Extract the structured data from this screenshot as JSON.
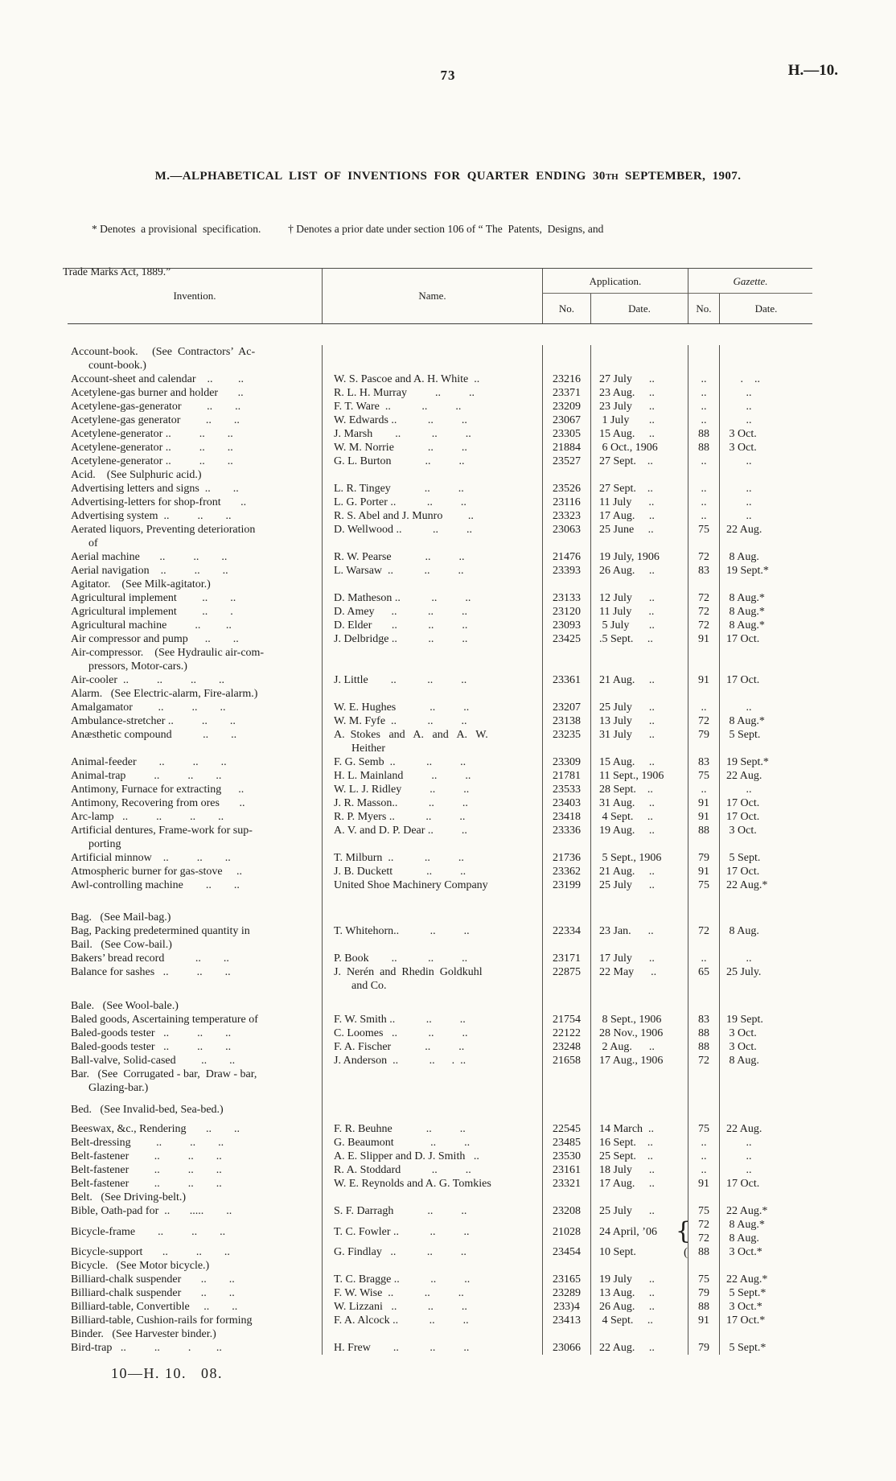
{
  "page": {
    "number": "73",
    "doc_ref": "H.—10.",
    "footer": "10—H. 10.   08."
  },
  "title": {
    "prefix": "M.—ALPHABETICAL  LIST  OF  INVENTIONS  FOR  QUARTER  ENDING  30",
    "ordinal": "TH",
    "suffix": "  SEPTEMBER,  1907."
  },
  "notes": {
    "line1": "* Denotes  a provisional  specification.          † Denotes a prior date under section 106 of “ The  Patents,  Designs, and",
    "line2": "Trade Marks Act, 1889.”"
  },
  "table": {
    "headers": {
      "invention": "Invention.",
      "name": "Name.",
      "application": "Application.",
      "gazette": "Gazette.",
      "no": "No.",
      "date": "Date."
    },
    "rows": [
      {
        "t": "x",
        "inv": [
          "Account-book.     (See  Contractors’  Ac-",
          "count-book.)"
        ]
      },
      {
        "t": "e",
        "inv": [
          "Account-sheet and calendar    ..         .."
        ],
        "name": [
          "W. S. Pascoe and A. H. White  .."
        ],
        "ano": "23216",
        "adate": "27 July      ..",
        "gno": "..",
        "gdate": "     .    .."
      },
      {
        "t": "e",
        "inv": [
          "Acetylene-gas burner and holder       .."
        ],
        "name": [
          "R. L. H. Murray          ..          .."
        ],
        "ano": "23371",
        "adate": "23 Aug.     ..",
        "gno": "..",
        "gdate": "       .."
      },
      {
        "t": "e",
        "inv": [
          "Acetylene-gas-generator         ..        .."
        ],
        "name": [
          "F. T. Ware  ..           ..          .."
        ],
        "ano": "23209",
        "adate": "23 July      ..",
        "gno": "..",
        "gdate": "       .."
      },
      {
        "t": "e",
        "inv": [
          "Acetylene-gas generator         ..        .."
        ],
        "name": [
          "W. Edwards ..           ..          .."
        ],
        "ano": "23067",
        "adate": " 1 July       ..",
        "gno": "..",
        "gdate": "       .."
      },
      {
        "t": "e",
        "inv": [
          "Acetylene-generator ..          ..        .."
        ],
        "name": [
          "J. Marsh        ..           ..          .."
        ],
        "ano": "23305",
        "adate": "15 Aug.     ..",
        "gno": "88",
        "gdate": " 3 Oct."
      },
      {
        "t": "e",
        "inv": [
          "Acetylene-generator ..          ..        .."
        ],
        "name": [
          "W. M. Norrie            ..          .."
        ],
        "ano": "21884",
        "adate": " 6 Oct., 1906",
        "gno": "88",
        "gdate": " 3 Oct."
      },
      {
        "t": "e",
        "inv": [
          "Acetylene-generator ..          ..        .."
        ],
        "name": [
          "G. L. Burton            ..          .."
        ],
        "ano": "23527",
        "adate": "27 Sept.    ..",
        "gno": "..",
        "gdate": "       .."
      },
      {
        "t": "x",
        "inv": [
          "Acid.    (See Sulphuric acid.)"
        ]
      },
      {
        "t": "e",
        "inv": [
          "Advertising letters and signs  ..        .."
        ],
        "name": [
          "L. R. Tingey            ..          .."
        ],
        "ano": "23526",
        "adate": "27 Sept.    ..",
        "gno": "..",
        "gdate": "       .."
      },
      {
        "t": "e",
        "inv": [
          "Advertising-letters for shop-front       .."
        ],
        "name": [
          "L. G. Porter ..           ..          .."
        ],
        "ano": "23116",
        "adate": "11 July      ..",
        "gno": "..",
        "gdate": "       .."
      },
      {
        "t": "e",
        "inv": [
          "Advertising system  ..          ..        .."
        ],
        "name": [
          "R. S. Abel and J. Munro         .."
        ],
        "ano": "23323",
        "adate": "17 Aug.     ..",
        "gno": "..",
        "gdate": "       .."
      },
      {
        "t": "e",
        "inv": [
          "Aerated liquors, Preventing deterioration",
          "of"
        ],
        "name": [
          "D. Wellwood ..           ..          .."
        ],
        "ano": "23063",
        "adate": "25 June     ..",
        "gno": "75",
        "gdate": "22 Aug."
      },
      {
        "t": "e",
        "inv": [
          "Aerial machine       ..          ..        .."
        ],
        "name": [
          "R. W. Pearse            ..          .."
        ],
        "ano": "21476",
        "adate": "19 July, 1906",
        "gno": "72",
        "gdate": " 8 Aug."
      },
      {
        "t": "e",
        "inv": [
          "Aerial navigation    ..          ..        .."
        ],
        "name": [
          "L. Warsaw  ..           ..          .."
        ],
        "ano": "23393",
        "adate": "26 Aug.     ..",
        "gno": "83",
        "gdate": "19 Sept.*"
      },
      {
        "t": "x",
        "inv": [
          "Agitator.    (See Milk-agitator.)"
        ]
      },
      {
        "t": "e",
        "inv": [
          "Agricultural implement         ..        .."
        ],
        "name": [
          "D. Matheson ..           ..          .."
        ],
        "ano": "23133",
        "adate": "12 July      ..",
        "gno": "72",
        "gdate": " 8 Aug.*"
      },
      {
        "t": "e",
        "inv": [
          "Agricultural implement         ..        . "
        ],
        "name": [
          "D. Amey      ..           ..          .."
        ],
        "ano": "23120",
        "adate": "11 July      ..",
        "gno": "72",
        "gdate": " 8 Aug.*"
      },
      {
        "t": "e",
        "inv": [
          "Agricultural machine          ..         .."
        ],
        "name": [
          "D. Elder       ..           ..          .."
        ],
        "ano": "23093",
        "adate": " 5 July       ..",
        "gno": "72",
        "gdate": " 8 Aug.*"
      },
      {
        "t": "e",
        "inv": [
          "Air compressor and pump      ..        .."
        ],
        "name": [
          "J. Delbridge ..           ..          .."
        ],
        "ano": "23425",
        "adate": ".5 Sept.     ..",
        "gno": "91",
        "gdate": "17 Oct."
      },
      {
        "t": "x",
        "inv": [
          "Air-compressor.    (See Hydraulic air-com-",
          "pressors, Motor-cars.)"
        ]
      },
      {
        "t": "e",
        "inv": [
          "Air-cooler  ..          ..          ..        .."
        ],
        "name": [
          "J. Little        ..           ..          .."
        ],
        "ano": "23361",
        "adate": "21 Aug.     ..",
        "gno": "91",
        "gdate": "17 Oct."
      },
      {
        "t": "x",
        "inv": [
          "Alarm.   (See Electric-alarm, Fire-alarm.)"
        ]
      },
      {
        "t": "e",
        "inv": [
          "Amalgamator         ..          ..        .."
        ],
        "name": [
          "W. E. Hughes            ..          .."
        ],
        "ano": "23207",
        "adate": "25 July      ..",
        "gno": "..",
        "gdate": "       .."
      },
      {
        "t": "e",
        "inv": [
          "Ambulance-stretcher ..          ..        .."
        ],
        "name": [
          "W. M. Fyfe  ..           ..          .."
        ],
        "ano": "23138",
        "adate": "13 July      ..",
        "gno": "72",
        "gdate": " 8 Aug.*"
      },
      {
        "t": "e",
        "inv": [
          "Anæsthetic compound           ..        .."
        ],
        "name": [
          "A.  Stokes   and   A.   and   A.   W.",
          "Heither"
        ],
        "ano": "23235",
        "adate": "31 July      ..",
        "gno": "79",
        "gdate": " 5 Sept."
      },
      {
        "t": "e",
        "inv": [
          "Animal-feeder        ..          ..        .."
        ],
        "name": [
          "F. G. Semb  ..           ..          .."
        ],
        "ano": "23309",
        "adate": "15 Aug.     ..",
        "gno": "83",
        "gdate": "19 Sept.*"
      },
      {
        "t": "e",
        "inv": [
          "Animal-trap          ..          ..        .."
        ],
        "name": [
          "H. L. Mainland          ..          .."
        ],
        "ano": "21781",
        "adate": "11 Sept., 1906",
        "gno": "75",
        "gdate": "22 Aug."
      },
      {
        "t": "e",
        "inv": [
          "Antimony, Furnace for extracting      .."
        ],
        "name": [
          "W. L. J. Ridley          ..          .."
        ],
        "ano": "23533",
        "adate": "28 Sept.    ..",
        "gno": "..",
        "gdate": "       .."
      },
      {
        "t": "e",
        "inv": [
          "Antimony, Recovering from ores       .."
        ],
        "name": [
          "J. R. Masson..           ..          .."
        ],
        "ano": "23403",
        "adate": "31 Aug.     ..",
        "gno": "91",
        "gdate": "17 Oct."
      },
      {
        "t": "e",
        "inv": [
          "Arc-lamp   ..          ..          ..        .."
        ],
        "name": [
          "R. P. Myers ..           ..          .."
        ],
        "ano": "23418",
        "adate": " 4 Sept.     ..",
        "gno": "91",
        "gdate": "17 Oct."
      },
      {
        "t": "e",
        "inv": [
          "Artificial dentures, Frame-work for sup-",
          "porting"
        ],
        "name": [
          "A. V. and D. P. Dear ..          .."
        ],
        "ano": "23336",
        "adate": "19 Aug.     ..",
        "gno": "88",
        "gdate": " 3 Oct."
      },
      {
        "t": "e",
        "inv": [
          "Artificial minnow    ..          ..        .."
        ],
        "name": [
          "T. Milburn  ..           ..          .."
        ],
        "ano": "21736",
        "adate": " 5 Sept., 1906",
        "gno": "79",
        "gdate": " 5 Sept."
      },
      {
        "t": "e",
        "inv": [
          "Atmospheric burner for gas-stove     .."
        ],
        "name": [
          "J. B. Duckett            ..          .."
        ],
        "ano": "23362",
        "adate": "21 Aug.     ..",
        "gno": "91",
        "gdate": "17 Oct."
      },
      {
        "t": "e",
        "inv": [
          "Awl-controlling machine        ..        .."
        ],
        "name": [
          "United Shoe Machinery Company"
        ],
        "ano": "23199",
        "adate": "25 July      ..",
        "gno": "75",
        "gdate": "22 Aug.*"
      },
      {
        "t": "s",
        "h": 23
      },
      {
        "t": "x",
        "inv": [
          "Bag.   (See Mail-bag.)"
        ]
      },
      {
        "t": "e",
        "inv": [
          "Bag, Packing predetermined quantity in"
        ],
        "name": [
          "T. Whitehorn..           ..          .."
        ],
        "ano": "22334",
        "adate": "23 Jan.      ..",
        "gno": "72",
        "gdate": " 8 Aug."
      },
      {
        "t": "x",
        "inv": [
          "Bail.   (See Cow-bail.)"
        ]
      },
      {
        "t": "e",
        "inv": [
          "Bakers’ bread record           ..        .."
        ],
        "name": [
          "P. Book        ..           ..          .."
        ],
        "ano": "23171",
        "adate": "17 July      ..",
        "gno": "..",
        "gdate": "       .."
      },
      {
        "t": "e",
        "inv": [
          "Balance for sashes   ..          ..        .."
        ],
        "name": [
          "J.  Nerén  and  Rhedin  Goldkuhl",
          "and Co."
        ],
        "ano": "22875",
        "adate": "22 May      ..",
        "gno": "65",
        "gdate": "25 July."
      },
      {
        "t": "s",
        "h": 8
      },
      {
        "t": "x",
        "inv": [
          "Bale.   (See Wool-bale.)"
        ]
      },
      {
        "t": "e",
        "inv": [
          "Baled goods, Ascertaining temperature of"
        ],
        "name": [
          "F. W. Smith ..           ..          .."
        ],
        "ano": "21754",
        "adate": " 8 Sept., 1906",
        "gno": "83",
        "gdate": "19 Sept."
      },
      {
        "t": "e",
        "inv": [
          "Baled-goods tester   ..          ..        .."
        ],
        "name": [
          "C. Loomes   ..           ..          .."
        ],
        "ano": "22122",
        "adate": "28 Nov., 1906",
        "gno": "88",
        "gdate": " 3 Oct."
      },
      {
        "t": "e",
        "inv": [
          "Baled-goods tester   ..          ..        .."
        ],
        "name": [
          "F. A. Fischer            ..          .."
        ],
        "ano": "23248",
        "adate": " 2 Aug.      ..",
        "gno": "88",
        "gdate": " 3 Oct."
      },
      {
        "t": "e",
        "inv": [
          "Ball-valve, Solid-cased         ..        .."
        ],
        "name": [
          "J. Anderson  ..           ..      .  .."
        ],
        "ano": "21658",
        "adate": "17 Aug., 1906",
        "gno": "72",
        "gdate": " 8 Aug."
      },
      {
        "t": "x",
        "inv": [
          "Bar.   (See  Corrugated - bar,  Draw - bar,",
          "Glazing-bar.)"
        ]
      },
      {
        "t": "s",
        "h": 10
      },
      {
        "t": "x",
        "inv": [
          "Bed.   (See Invalid-bed, Sea-bed.)"
        ]
      },
      {
        "t": "s",
        "h": 7
      },
      {
        "t": "e",
        "inv": [
          "Beeswax, &c., Rendering       ..        .."
        ],
        "name": [
          "F. R. Beuhne            ..          .."
        ],
        "ano": "22545",
        "adate": "14 March  ..",
        "gno": "75",
        "gdate": "22 Aug."
      },
      {
        "t": "e",
        "inv": [
          "Belt-dressing         ..          ..        .."
        ],
        "name": [
          "G. Beaumont             ..          .."
        ],
        "ano": "23485",
        "adate": "16 Sept.    ..",
        "gno": "..",
        "gdate": "       .."
      },
      {
        "t": "e",
        "inv": [
          "Belt-fastener         ..          ..        .."
        ],
        "name": [
          "A. E. Slipper and D. J. Smith   .."
        ],
        "ano": "23530",
        "adate": "25 Sept.    ..",
        "gno": "..",
        "gdate": "       .."
      },
      {
        "t": "e",
        "inv": [
          "Belt-fastener         ..          ..        .."
        ],
        "name": [
          "R. A. Stoddard           ..          .."
        ],
        "ano": "23161",
        "adate": "18 July      ..",
        "gno": "..",
        "gdate": "       .."
      },
      {
        "t": "e",
        "inv": [
          "Belt-fastener         ..          ..        .."
        ],
        "name": [
          "W. E. Reynolds and A. G. Tomkies"
        ],
        "ano": "23321",
        "adate": "17 Aug.     ..",
        "gno": "91",
        "gdate": "17 Oct."
      },
      {
        "t": "x",
        "inv": [
          "Belt.   (See Driving-belt.)"
        ]
      },
      {
        "t": "e",
        "inv": [
          "Bible, Oath-pad for  ..       .....        .."
        ],
        "name": [
          "S. F. Darragh            ..          .."
        ],
        "ano": "23208",
        "adate": "25 July      ..",
        "gno": "75",
        "gdate": "22 Aug.*"
      },
      {
        "t": "e2",
        "inv": [
          "Bicycle-frame        ..          ..        .."
        ],
        "name": [
          "T. C. Fowler ..           ..          .."
        ],
        "ano": "21028",
        "adate": "24 April, ’06",
        "brace": "{",
        "gno": [
          "72",
          "72"
        ],
        "gdate": [
          " 8 Aug.*",
          " 8 Aug."
        ]
      },
      {
        "t": "e",
        "inv": [
          "Bicycle-support       ..          ..        .."
        ],
        "name": [
          "G. Findlay   ..           ..          .."
        ],
        "ano": "23454",
        "adate": "10 Sept.",
        "brace": "(",
        "gno": "88",
        "gdate": " 3 Oct.*"
      },
      {
        "t": "x",
        "inv": [
          "Bicycle.   (See Motor bicycle.)"
        ]
      },
      {
        "t": "e",
        "inv": [
          "Billiard-chalk suspender       ..        .."
        ],
        "name": [
          "T. C. Bragge ..           ..          .."
        ],
        "ano": "23165",
        "adate": "19 July      ..",
        "gno": "75",
        "gdate": "22 Aug.*"
      },
      {
        "t": "e",
        "inv": [
          "Billiard-chalk suspender       ..        .."
        ],
        "name": [
          "F. W. Wise  ..           ..          .."
        ],
        "ano": "23289",
        "adate": "13 Aug.     ..",
        "gno": "79",
        "gdate": " 5 Sept.*"
      },
      {
        "t": "e",
        "inv": [
          "Billiard-table, Convertible     ..        .."
        ],
        "name": [
          "W. Lizzani   ..           ..          .."
        ],
        "ano": "233)4",
        "adate": "26 Aug.     ..",
        "gno": "88",
        "gdate": " 3 Oct.*"
      },
      {
        "t": "e",
        "inv": [
          "Billiard-table, Cushion-rails for forming"
        ],
        "name": [
          "F. A. Alcock ..           ..          .."
        ],
        "ano": "23413",
        "adate": " 4 Sept.     ..",
        "gno": "91",
        "gdate": "17 Oct.*"
      },
      {
        "t": "x",
        "inv": [
          "Binder.   (See Harvester binder.)"
        ]
      },
      {
        "t": "e",
        "inv": [
          "Bird-trap   ..          ..          .         .."
        ],
        "name": [
          "H. Frew        ..           ..          .."
        ],
        "ano": "23066",
        "adate": "22 Aug.     ..",
        "gno": "79",
        "gdate": " 5 Sept.*"
      }
    ]
  }
}
